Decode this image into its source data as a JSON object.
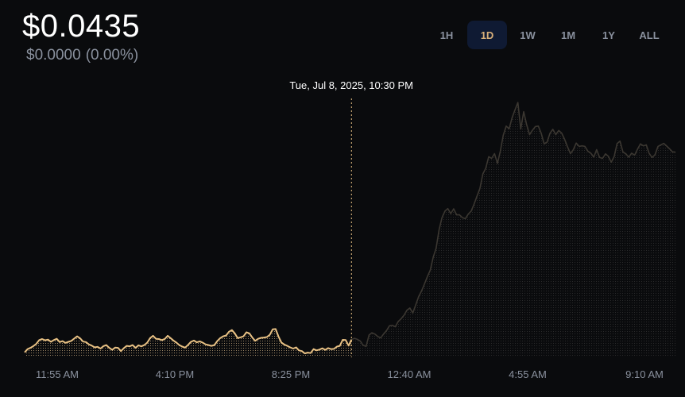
{
  "price": {
    "current": "$0.0435",
    "change_amount": "$0.0000",
    "change_percent": "(0.00%)"
  },
  "range_tabs": [
    {
      "label": "1H",
      "active": false
    },
    {
      "label": "1D",
      "active": true
    },
    {
      "label": "1W",
      "active": false
    },
    {
      "label": "1M",
      "active": false
    },
    {
      "label": "1Y",
      "active": false
    },
    {
      "label": "ALL",
      "active": false
    }
  ],
  "colors": {
    "highlight": "#e8c184",
    "muted_line": "#3b3731",
    "accent_tab_bg": "#0f1a33",
    "accent_tab_text": "#d9b07a"
  },
  "chart_data": {
    "type": "line",
    "hover_label": "Tue, Jul 8, 2025, 10:30 PM",
    "hover_index": 112,
    "x_tick_labels": [
      "11:55 AM",
      "4:10 PM",
      "8:25 PM",
      "12:40 AM",
      "4:55 AM",
      "9:10 AM"
    ],
    "grid": false,
    "values": [
      0.7,
      2.0,
      2.5,
      3.2,
      4.1,
      5.6,
      6.0,
      5.5,
      5.8,
      4.9,
      5.6,
      6.1,
      4.8,
      5.2,
      4.5,
      4.9,
      5.3,
      6.2,
      7.1,
      6.3,
      5.0,
      4.8,
      3.9,
      3.4,
      2.7,
      2.9,
      2.2,
      3.2,
      3.6,
      2.5,
      1.7,
      2.6,
      2.5,
      1.2,
      2.4,
      3.3,
      3.1,
      3.6,
      2.5,
      3.5,
      3.1,
      3.6,
      4.6,
      6.4,
      7.3,
      6.1,
      6.0,
      5.6,
      6.0,
      7.3,
      6.4,
      5.4,
      4.6,
      3.6,
      3.0,
      2.6,
      3.7,
      4.9,
      5.4,
      4.7,
      5.1,
      4.6,
      3.9,
      3.6,
      3.3,
      3.6,
      5.2,
      6.4,
      7.1,
      7.4,
      8.9,
      9.6,
      8.3,
      6.4,
      6.7,
      7.1,
      8.7,
      8.3,
      6.6,
      5.3,
      6.1,
      6.5,
      6.6,
      6.8,
      7.7,
      9.9,
      10.0,
      7.0,
      4.6,
      3.8,
      3.3,
      2.7,
      2.2,
      2.7,
      1.5,
      1.2,
      0.3,
      0.6,
      0.4,
      2.0,
      1.5,
      1.8,
      2.3,
      1.7,
      2.4,
      2.0,
      2.1,
      3.0,
      3.3,
      5.7,
      5.6,
      3.4,
      5.8,
      6.3,
      5.9,
      5.2,
      3.5,
      3.1,
      7.6,
      8.5,
      8.0,
      7.0,
      6.5,
      8.0,
      9.4,
      11.3,
      11.5,
      10.9,
      13.0,
      14.1,
      15.5,
      17.5,
      18.4,
      16.4,
      19.6,
      22.9,
      25.2,
      28.0,
      30.9,
      33.5,
      38.7,
      42.2,
      49.5,
      54.4,
      57.0,
      58.0,
      56.0,
      57.9,
      55.5,
      55.5,
      54.4,
      54.0,
      55.8,
      57.0,
      59.8,
      63.0,
      66.0,
      71.8,
      74.1,
      78.7,
      78.0,
      79.9,
      76.0,
      80.9,
      87.2,
      90.9,
      89.8,
      94.1,
      97.3,
      100.3,
      89.7,
      96.6,
      91.5,
      87.5,
      89.2,
      90.7,
      90.9,
      88.0,
      83.8,
      84.5,
      88.0,
      89.6,
      87.5,
      89.1,
      88.1,
      85.7,
      82.7,
      79.9,
      81.5,
      84.1,
      82.8,
      83.0,
      82.8,
      80.9,
      80.1,
      78.5,
      81.5,
      78.4,
      78.0,
      79.8,
      78.9,
      76.5,
      78.8,
      83.9,
      84.9,
      80.6,
      79.8,
      78.5,
      80.1,
      79.3,
      81.7,
      83.8,
      83.0,
      83.4,
      80.0,
      78.4,
      79.5,
      82.8,
      83.4,
      84.0,
      82.9,
      81.8,
      80.6,
      80.5
    ]
  }
}
